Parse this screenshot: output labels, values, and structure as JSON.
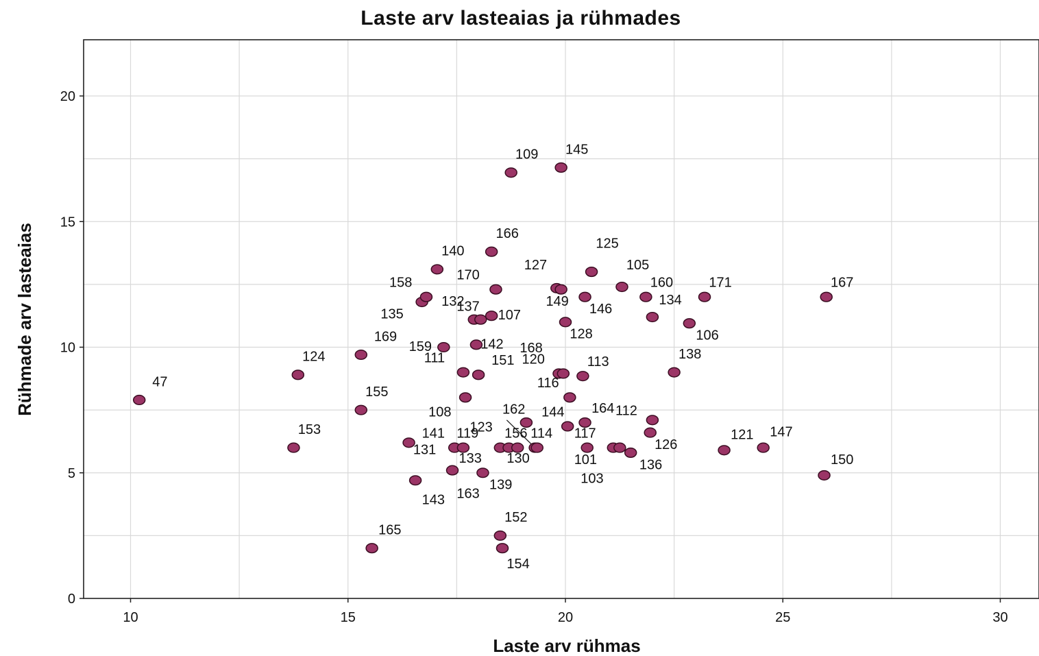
{
  "chart_data": {
    "type": "scatter",
    "title": "Laste arv lasteaias ja rühmades",
    "xlabel": "Laste arv rühmas",
    "ylabel": "Rühmade arv lasteaias",
    "xlim": [
      9,
      31
    ],
    "ylim": [
      0,
      22
    ],
    "xticks": [
      10,
      15,
      20,
      25,
      30
    ],
    "yticks": [
      0,
      5,
      10,
      15,
      20
    ],
    "x_gridlines": [
      12.5,
      17.5,
      22.5,
      27.5
    ],
    "y_gridlines": [
      2.5,
      7.5,
      12.5,
      17.5
    ],
    "grid": true,
    "point_color": "#9b3566",
    "points": [
      {
        "label": "47",
        "x": 10.2,
        "y": 7.9
      },
      {
        "label": "153",
        "x": 13.75,
        "y": 6.0
      },
      {
        "label": "124",
        "x": 13.85,
        "y": 8.9
      },
      {
        "label": "169",
        "x": 15.3,
        "y": 9.7
      },
      {
        "label": "155",
        "x": 15.3,
        "y": 7.5
      },
      {
        "label": "165",
        "x": 15.55,
        "y": 2.0
      },
      {
        "label": "131",
        "x": 16.4,
        "y": 6.2
      },
      {
        "label": "143",
        "x": 16.55,
        "y": 4.7
      },
      {
        "label": "135",
        "x": 16.7,
        "y": 11.8
      },
      {
        "label": "158",
        "x": 16.8,
        "y": 12.0
      },
      {
        "label": "140",
        "x": 17.05,
        "y": 13.1
      },
      {
        "label": "159",
        "x": 17.2,
        "y": 10.0
      },
      {
        "label": "163",
        "x": 17.4,
        "y": 5.1
      },
      {
        "label": "141",
        "x": 17.45,
        "y": 6.0
      },
      {
        "label": "119",
        "x": 17.65,
        "y": 6.0
      },
      {
        "label": "111",
        "x": 17.65,
        "y": 9.0
      },
      {
        "label": "108",
        "x": 17.7,
        "y": 8.0
      },
      {
        "label": "137",
        "x": 17.9,
        "y": 11.1
      },
      {
        "label": "132",
        "x": 18.05,
        "y": 11.1
      },
      {
        "label": "151",
        "x": 18.0,
        "y": 8.9
      },
      {
        "label": "142",
        "x": 17.95,
        "y": 10.1
      },
      {
        "label": "139",
        "x": 18.1,
        "y": 5.0
      },
      {
        "label": "107",
        "x": 18.3,
        "y": 11.25
      },
      {
        "label": "166",
        "x": 18.3,
        "y": 13.8
      },
      {
        "label": "170",
        "x": 18.4,
        "y": 12.3
      },
      {
        "label": "152",
        "x": 18.5,
        "y": 2.5
      },
      {
        "label": "154",
        "x": 18.55,
        "y": 2.0
      },
      {
        "label": "133",
        "x": 18.5,
        "y": 6.0
      },
      {
        "label": "130",
        "x": 18.7,
        "y": 6.0
      },
      {
        "label": "156",
        "x": 18.9,
        "y": 6.0
      },
      {
        "label": "109",
        "x": 18.75,
        "y": 16.95
      },
      {
        "label": "162",
        "x": 19.1,
        "y": 7.0
      },
      {
        "label": "123",
        "x": 19.3,
        "y": 6.0
      },
      {
        "label": "114",
        "x": 19.35,
        "y": 6.0
      },
      {
        "label": "127",
        "x": 19.8,
        "y": 12.35
      },
      {
        "label": "149",
        "x": 19.9,
        "y": 12.3
      },
      {
        "label": "120",
        "x": 19.85,
        "y": 8.95
      },
      {
        "label": "145",
        "x": 19.9,
        "y": 17.15
      },
      {
        "label": "168",
        "x": 19.95,
        "y": 8.95
      },
      {
        "label": "128",
        "x": 20.0,
        "y": 11.0
      },
      {
        "label": "144",
        "x": 20.05,
        "y": 6.85
      },
      {
        "label": "116",
        "x": 20.1,
        "y": 8.0
      },
      {
        "label": "113",
        "x": 20.4,
        "y": 8.85
      },
      {
        "label": "146",
        "x": 20.45,
        "y": 12.0
      },
      {
        "label": "164",
        "x": 20.45,
        "y": 7.0
      },
      {
        "label": "117",
        "x": 20.5,
        "y": 6.0
      },
      {
        "label": "125",
        "x": 20.6,
        "y": 13.0
      },
      {
        "label": "101",
        "x": 21.1,
        "y": 6.0
      },
      {
        "label": "103",
        "x": 21.25,
        "y": 6.0
      },
      {
        "label": "105",
        "x": 21.3,
        "y": 12.4
      },
      {
        "label": "136",
        "x": 21.5,
        "y": 5.8
      },
      {
        "label": "160",
        "x": 21.85,
        "y": 12.0
      },
      {
        "label": "126",
        "x": 21.95,
        "y": 6.6
      },
      {
        "label": "112",
        "x": 22.0,
        "y": 7.1
      },
      {
        "label": "134",
        "x": 22.0,
        "y": 11.2
      },
      {
        "label": "138",
        "x": 22.5,
        "y": 9.0
      },
      {
        "label": "106",
        "x": 22.85,
        "y": 10.95
      },
      {
        "label": "171",
        "x": 23.2,
        "y": 12.0
      },
      {
        "label": "121",
        "x": 23.65,
        "y": 5.9
      },
      {
        "label": "147",
        "x": 24.55,
        "y": 6.0
      },
      {
        "label": "150",
        "x": 25.95,
        "y": 4.9
      },
      {
        "label": "167",
        "x": 26.0,
        "y": 12.0
      }
    ],
    "label_placement": {
      "47": [
        0.3,
        0.55
      ],
      "153": [
        0.1,
        0.55
      ],
      "124": [
        0.1,
        0.55
      ],
      "169": [
        0.3,
        0.55
      ],
      "155": [
        0.1,
        0.55
      ],
      "165": [
        0.15,
        0.55
      ],
      "131": [
        0.1,
        -0.45
      ],
      "143": [
        0.15,
        -0.95
      ],
      "135": [
        -0.95,
        -0.65
      ],
      "158": [
        -0.85,
        0.4
      ],
      "140": [
        0.1,
        0.55
      ],
      "159": [
        -0.8,
        -0.15
      ],
      "163": [
        0.1,
        -1.1
      ],
      "141": [
        -0.75,
        0.4
      ],
      "119": [
        -0.15,
        0.4
      ],
      "111": [
        -0.9,
        0.4
      ],
      "108": [
        -0.85,
        -0.75
      ],
      "137": [
        -0.4,
        0.35
      ],
      "132": [
        -0.9,
        0.55
      ],
      "151": [
        0.3,
        0.4
      ],
      "142": [
        0.1,
        -0.15
      ],
      "139": [
        0.15,
        -0.65
      ],
      "107": [
        0.15,
        -0.15
      ],
      "166": [
        0.1,
        0.55
      ],
      "170": [
        -0.9,
        0.4
      ],
      "152": [
        0.1,
        0.55
      ],
      "154": [
        0.1,
        -0.8
      ],
      "133": [
        -0.95,
        -0.6
      ],
      "130": [
        -0.05,
        -0.6
      ],
      "156": [
        -0.3,
        0.4
      ],
      "109": [
        0.1,
        0.55
      ],
      "162": [
        -0.55,
        0.35
      ],
      "123": [
        -1.5,
        0.65
      ],
      "114": [
        -0.15,
        0.4
      ],
      "127": [
        -0.75,
        0.75
      ],
      "149": [
        -0.35,
        -0.65
      ],
      "120": [
        -0.85,
        0.4
      ],
      "145": [
        0.1,
        0.55
      ],
      "168": [
        -1.0,
        0.85
      ],
      "128": [
        0.1,
        -0.65
      ],
      "144": [
        -0.6,
        0.4
      ],
      "116": [
        -0.75,
        0.4
      ],
      "113": [
        0.1,
        0.4
      ],
      "146": [
        0.1,
        -0.65
      ],
      "164": [
        0.15,
        0.4
      ],
      "117": [
        -0.3,
        0.4
      ],
      "125": [
        0.1,
        0.95
      ],
      "101": [
        -0.9,
        -0.65
      ],
      "103": [
        -0.9,
        -1.4
      ],
      "105": [
        0.1,
        0.7
      ],
      "136": [
        0.2,
        -0.65
      ],
      "160": [
        0.1,
        0.4
      ],
      "126": [
        0.1,
        -0.65
      ],
      "112": [
        -0.85,
        0.2
      ],
      "134": [
        0.15,
        0.5
      ],
      "138": [
        0.1,
        0.55
      ],
      "106": [
        0.15,
        -0.65
      ],
      "171": [
        0.1,
        0.4
      ],
      "121": [
        0.15,
        0.45
      ],
      "147": [
        0.15,
        0.45
      ],
      "150": [
        0.15,
        0.45
      ],
      "167": [
        0.1,
        0.4
      ]
    },
    "connector": {
      "from": [
        19.3,
        6.0
      ],
      "to": [
        18.65,
        7.1
      ]
    }
  }
}
